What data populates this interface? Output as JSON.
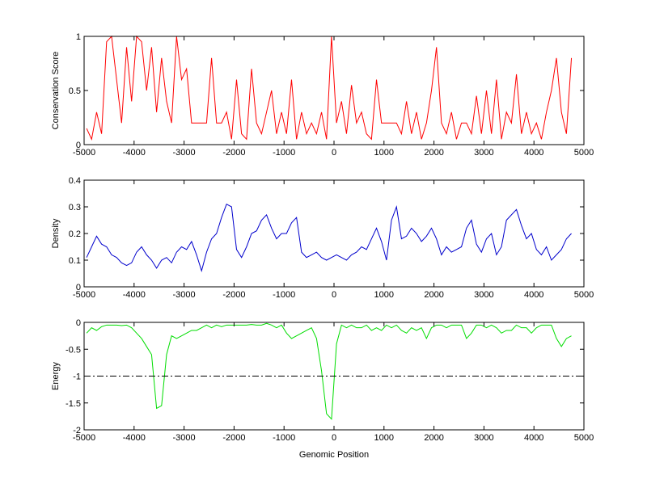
{
  "chart_data": [
    {
      "type": "line",
      "ylabel": "Conservation Score",
      "x": [
        -4950,
        -4850,
        -4750,
        -4650,
        -4550,
        -4450,
        -4350,
        -4250,
        -4150,
        -4050,
        -3950,
        -3850,
        -3750,
        -3650,
        -3550,
        -3450,
        -3350,
        -3250,
        -3150,
        -3050,
        -2950,
        -2850,
        -2750,
        -2650,
        -2550,
        -2450,
        -2350,
        -2250,
        -2150,
        -2050,
        -1950,
        -1850,
        -1750,
        -1650,
        -1550,
        -1450,
        -1350,
        -1250,
        -1150,
        -1050,
        -950,
        -850,
        -750,
        -650,
        -550,
        -450,
        -350,
        -250,
        -150,
        -50,
        50,
        150,
        250,
        350,
        450,
        550,
        650,
        750,
        850,
        950,
        1050,
        1150,
        1250,
        1350,
        1450,
        1550,
        1650,
        1750,
        1850,
        1950,
        2050,
        2150,
        2250,
        2350,
        2450,
        2550,
        2650,
        2750,
        2850,
        2950,
        3050,
        3150,
        3250,
        3350,
        3450,
        3550,
        3650,
        3750,
        3850,
        3950,
        4050,
        4150,
        4250,
        4350,
        4450,
        4550,
        4650,
        4750
      ],
      "series": [
        {
          "color": "#ff0000",
          "values": [
            0.15,
            0.05,
            0.3,
            0.1,
            0.95,
            1,
            0.6,
            0.2,
            0.9,
            0.4,
            1,
            0.95,
            0.5,
            0.9,
            0.3,
            0.8,
            0.4,
            0.2,
            1,
            0.6,
            0.7,
            0.2,
            0.2,
            0.2,
            0.2,
            0.8,
            0.2,
            0.2,
            0.3,
            0.05,
            0.6,
            0.1,
            0.05,
            0.7,
            0.2,
            0.1,
            0.3,
            0.5,
            0.1,
            0.3,
            0.1,
            0.6,
            0.05,
            0.3,
            0.1,
            0.2,
            0.1,
            0.3,
            0.05,
            1,
            0.2,
            0.4,
            0.1,
            0.55,
            0.2,
            0.3,
            0.1,
            0.05,
            0.6,
            0.2,
            0.2,
            0.2,
            0.2,
            0.1,
            0.4,
            0.1,
            0.3,
            0.05,
            0.2,
            0.5,
            0.9,
            0.2,
            0.1,
            0.3,
            0.05,
            0.2,
            0.2,
            0.1,
            0.45,
            0.1,
            0.5,
            0.1,
            0.6,
            0.05,
            0.3,
            0.2,
            0.65,
            0.1,
            0.3,
            0.1,
            0.2,
            0.05,
            0.3,
            0.5,
            0.8,
            0.3,
            0.1,
            0.8
          ]
        }
      ],
      "xlim": [
        -5000,
        5000
      ],
      "xticks": [
        -5000,
        -4000,
        -3000,
        -2000,
        -1000,
        0,
        1000,
        2000,
        3000,
        4000,
        5000
      ],
      "ylim": [
        0,
        1
      ],
      "yticks": [
        0,
        0.5,
        1
      ]
    },
    {
      "type": "line",
      "ylabel": "Density",
      "x": [
        -4950,
        -4850,
        -4750,
        -4650,
        -4550,
        -4450,
        -4350,
        -4250,
        -4150,
        -4050,
        -3950,
        -3850,
        -3750,
        -3650,
        -3550,
        -3450,
        -3350,
        -3250,
        -3150,
        -3050,
        -2950,
        -2850,
        -2750,
        -2650,
        -2550,
        -2450,
        -2350,
        -2250,
        -2150,
        -2050,
        -1950,
        -1850,
        -1750,
        -1650,
        -1550,
        -1450,
        -1350,
        -1250,
        -1150,
        -1050,
        -950,
        -850,
        -750,
        -650,
        -550,
        -450,
        -350,
        -250,
        -150,
        -50,
        50,
        150,
        250,
        350,
        450,
        550,
        650,
        750,
        850,
        950,
        1050,
        1150,
        1250,
        1350,
        1450,
        1550,
        1650,
        1750,
        1850,
        1950,
        2050,
        2150,
        2250,
        2350,
        2450,
        2550,
        2650,
        2750,
        2850,
        2950,
        3050,
        3150,
        3250,
        3350,
        3450,
        3550,
        3650,
        3750,
        3850,
        3950,
        4050,
        4150,
        4250,
        4350,
        4450,
        4550,
        4650,
        4750
      ],
      "series": [
        {
          "color": "#0000cc",
          "values": [
            0.11,
            0.15,
            0.19,
            0.16,
            0.15,
            0.12,
            0.11,
            0.09,
            0.08,
            0.09,
            0.13,
            0.15,
            0.12,
            0.1,
            0.07,
            0.1,
            0.11,
            0.09,
            0.13,
            0.15,
            0.14,
            0.17,
            0.12,
            0.06,
            0.13,
            0.18,
            0.2,
            0.26,
            0.31,
            0.3,
            0.14,
            0.11,
            0.15,
            0.2,
            0.21,
            0.25,
            0.27,
            0.22,
            0.18,
            0.2,
            0.2,
            0.24,
            0.26,
            0.13,
            0.11,
            0.12,
            0.13,
            0.11,
            0.1,
            0.11,
            0.12,
            0.11,
            0.1,
            0.12,
            0.13,
            0.15,
            0.14,
            0.18,
            0.22,
            0.17,
            0.1,
            0.25,
            0.3,
            0.18,
            0.19,
            0.22,
            0.2,
            0.17,
            0.19,
            0.22,
            0.18,
            0.12,
            0.15,
            0.13,
            0.14,
            0.15,
            0.22,
            0.25,
            0.16,
            0.13,
            0.18,
            0.2,
            0.12,
            0.15,
            0.25,
            0.27,
            0.29,
            0.23,
            0.18,
            0.2,
            0.14,
            0.12,
            0.15,
            0.1,
            0.12,
            0.14,
            0.18,
            0.2
          ]
        }
      ],
      "xlim": [
        -5000,
        5000
      ],
      "xticks": [
        -5000,
        -4000,
        -3000,
        -2000,
        -1000,
        0,
        1000,
        2000,
        3000,
        4000,
        5000
      ],
      "ylim": [
        0,
        0.4
      ],
      "yticks": [
        0,
        0.1,
        0.2,
        0.3,
        0.4
      ]
    },
    {
      "type": "line",
      "ylabel": "Energy",
      "xlabel": "Genomic Position",
      "x": [
        -4950,
        -4850,
        -4750,
        -4650,
        -4550,
        -4450,
        -4350,
        -4250,
        -4150,
        -4050,
        -3950,
        -3850,
        -3750,
        -3650,
        -3550,
        -3450,
        -3350,
        -3250,
        -3150,
        -3050,
        -2950,
        -2850,
        -2750,
        -2650,
        -2550,
        -2450,
        -2350,
        -2250,
        -2150,
        -2050,
        -1950,
        -1850,
        -1750,
        -1650,
        -1550,
        -1450,
        -1350,
        -1250,
        -1150,
        -1050,
        -950,
        -850,
        -750,
        -650,
        -550,
        -450,
        -350,
        -250,
        -150,
        -50,
        50,
        150,
        250,
        350,
        450,
        550,
        650,
        750,
        850,
        950,
        1050,
        1150,
        1250,
        1350,
        1450,
        1550,
        1650,
        1750,
        1850,
        1950,
        2050,
        2150,
        2250,
        2350,
        2450,
        2550,
        2650,
        2750,
        2850,
        2950,
        3050,
        3150,
        3250,
        3350,
        3450,
        3550,
        3650,
        3750,
        3850,
        3950,
        4050,
        4150,
        4250,
        4350,
        4450,
        4550,
        4650,
        4750
      ],
      "series": [
        {
          "color": "#00dd00",
          "values": [
            -0.2,
            -0.1,
            -0.15,
            -0.08,
            -0.05,
            -0.05,
            -0.05,
            -0.06,
            -0.05,
            -0.1,
            -0.2,
            -0.3,
            -0.45,
            -0.6,
            -1.6,
            -1.55,
            -0.6,
            -0.25,
            -0.3,
            -0.25,
            -0.2,
            -0.15,
            -0.15,
            -0.1,
            -0.05,
            -0.1,
            -0.05,
            -0.08,
            -0.05,
            -0.05,
            -0.05,
            -0.05,
            -0.05,
            -0.04,
            -0.05,
            -0.05,
            -0.02,
            -0.05,
            -0.1,
            -0.05,
            -0.2,
            -0.3,
            -0.25,
            -0.2,
            -0.15,
            -0.1,
            -0.3,
            -0.9,
            -1.7,
            -1.8,
            -0.4,
            -0.05,
            -0.1,
            -0.05,
            -0.1,
            -0.1,
            -0.05,
            -0.15,
            -0.1,
            -0.15,
            -0.05,
            -0.1,
            -0.05,
            -0.15,
            -0.2,
            -0.1,
            -0.15,
            -0.1,
            -0.3,
            -0.1,
            -0.05,
            -0.05,
            -0.1,
            -0.05,
            -0.05,
            -0.05,
            -0.3,
            -0.2,
            -0.05,
            -0.05,
            -0.1,
            -0.05,
            -0.1,
            -0.2,
            -0.15,
            -0.15,
            -0.05,
            -0.1,
            -0.1,
            -0.2,
            -0.1,
            -0.05,
            -0.05,
            -0.05,
            -0.3,
            -0.45,
            -0.3,
            -0.25
          ]
        }
      ],
      "hline": -1,
      "xlim": [
        -5000,
        5000
      ],
      "xticks": [
        -5000,
        -4000,
        -3000,
        -2000,
        -1000,
        0,
        1000,
        2000,
        3000,
        4000,
        5000
      ],
      "ylim": [
        -2,
        0
      ],
      "yticks": [
        -2,
        -1.5,
        -1,
        -0.5,
        0
      ]
    }
  ]
}
